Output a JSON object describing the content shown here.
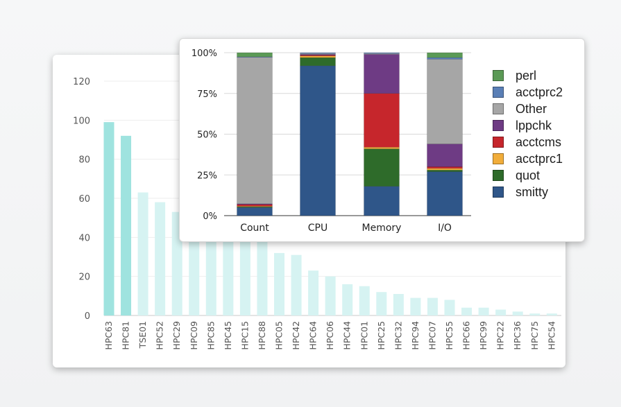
{
  "chart_data": [
    {
      "type": "bar",
      "title": "",
      "xlabel": "",
      "ylabel": "",
      "ylim": [
        0,
        120
      ],
      "yticks": [
        0,
        20,
        40,
        60,
        80,
        100,
        120
      ],
      "grid": true,
      "categories": [
        "HPC63",
        "HPC81",
        "TSE01",
        "HPC52",
        "HPC29",
        "HPC09",
        "HPC85",
        "HPC45",
        "HPC15",
        "HPC88",
        "HPC05",
        "HPC42",
        "HPC64",
        "HPC06",
        "HPC44",
        "HPC01",
        "HPC25",
        "HPC32",
        "HPC94",
        "HPC07",
        "HPC55",
        "HPC66",
        "HPC99",
        "HPC22",
        "HPC36",
        "HPC75",
        "HPC54"
      ],
      "values": [
        99,
        92,
        63,
        58,
        53,
        50,
        46,
        44,
        42,
        38,
        32,
        31,
        23,
        20,
        16,
        15,
        12,
        11,
        9,
        9,
        8,
        4,
        4,
        3,
        2,
        1,
        1
      ],
      "highlighted": [
        "HPC63",
        "HPC81"
      ],
      "colors": {
        "highlight": "#9fe3df",
        "normal": "#d6f3f2"
      }
    },
    {
      "type": "bar",
      "stacked": true,
      "percent": true,
      "title": "",
      "yticks": [
        "0%",
        "25%",
        "50%",
        "75%",
        "100%"
      ],
      "ylim": [
        0,
        100
      ],
      "legend_position": "right",
      "categories": [
        "Count",
        "CPU",
        "Memory",
        "I/O"
      ],
      "series": [
        {
          "name": "smitty",
          "color": "#2f5689",
          "values": [
            5,
            92,
            18,
            27
          ]
        },
        {
          "name": "quot",
          "color": "#2e6b2a",
          "values": [
            0.5,
            5,
            23,
            1
          ]
        },
        {
          "name": "acctprc1",
          "color": "#f1ad3a",
          "values": [
            0.3,
            1,
            1,
            1
          ]
        },
        {
          "name": "acctcms",
          "color": "#c6262c",
          "values": [
            1,
            0.5,
            33,
            1
          ]
        },
        {
          "name": "lppchk",
          "color": "#6e3b84",
          "values": [
            0.5,
            0.5,
            24,
            14
          ]
        },
        {
          "name": "Other",
          "color": "#a6a6a6",
          "values": [
            90,
            0.5,
            0.5,
            52
          ]
        },
        {
          "name": "acctprc2",
          "color": "#5a7fb6",
          "values": [
            0.2,
            0.5,
            0.5,
            1
          ]
        },
        {
          "name": "perl",
          "color": "#5b9a56",
          "values": [
            2.5,
            0,
            0,
            3
          ]
        }
      ],
      "legend_order": [
        "perl",
        "acctprc2",
        "Other",
        "lppchk",
        "acctcms",
        "acctprc1",
        "quot",
        "smitty"
      ]
    }
  ]
}
